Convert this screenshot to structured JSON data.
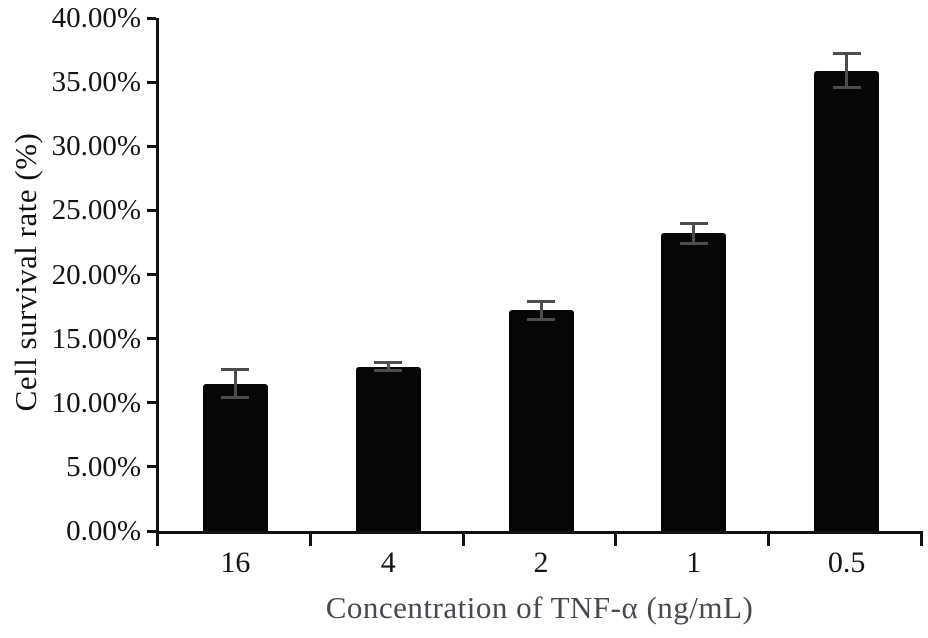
{
  "chart_data": {
    "type": "bar",
    "title": "",
    "categories": [
      "16",
      "4",
      "2",
      "1",
      "0.5"
    ],
    "values": [
      11.5,
      12.8,
      17.2,
      23.2,
      35.9
    ],
    "errors": [
      1.1,
      0.3,
      0.7,
      0.8,
      1.3
    ],
    "value_unit": "%",
    "xlabel": "Concentration of TNF-α (ng/mL)",
    "ylabel": "Cell survival rate (%)",
    "ylim": [
      0,
      40
    ],
    "ytick_step": 5,
    "ytick_labels": [
      "0.00%",
      "5.00%",
      "10.00%",
      "15.00%",
      "20.00%",
      "25.00%",
      "30.00%",
      "35.00%",
      "40.00%"
    ],
    "grid": false,
    "legend": "none",
    "colors": {
      "bar": "#060606",
      "error_bar": "#4d4d4d",
      "axis": "#111111",
      "tick_label": "#141414",
      "xlabel_text": "#46494f",
      "background": "#ffffff"
    }
  }
}
